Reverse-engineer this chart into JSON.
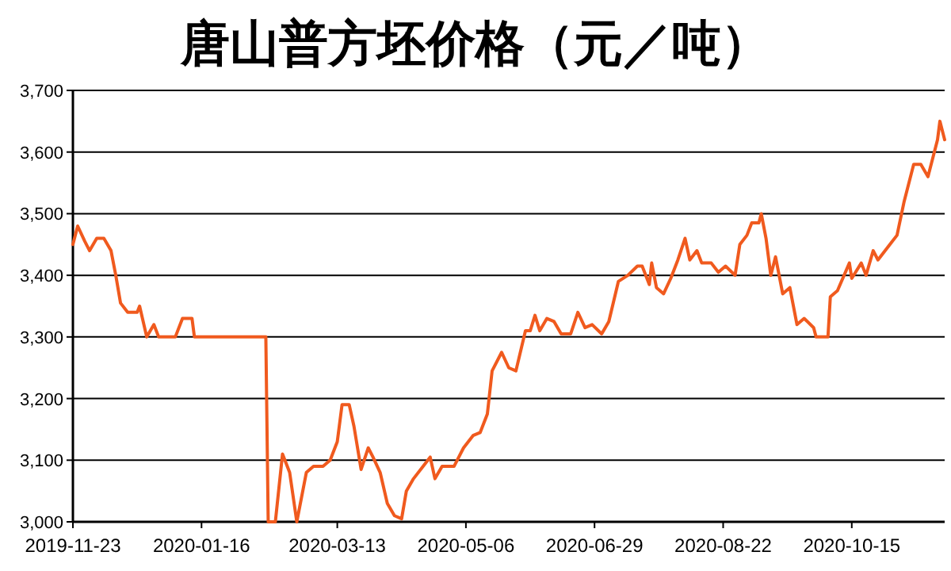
{
  "chart_data": {
    "type": "line",
    "title": "唐山普方坯价格（元／吨）",
    "x": [
      "2019-11-23",
      "2019-11-25",
      "2019-11-28",
      "2019-11-30",
      "2019-12-03",
      "2019-12-06",
      "2019-12-09",
      "2019-12-11",
      "2019-12-13",
      "2019-12-16",
      "2019-12-20",
      "2019-12-21",
      "2019-12-24",
      "2019-12-27",
      "2019-12-29",
      "2020-01-05",
      "2020-01-08",
      "2020-01-12",
      "2020-01-13",
      "2020-01-16",
      "2020-02-12",
      "2020-02-13",
      "2020-02-16",
      "2020-02-19",
      "2020-02-22",
      "2020-02-25",
      "2020-02-29",
      "2020-03-03",
      "2020-03-07",
      "2020-03-10",
      "2020-03-13",
      "2020-03-15",
      "2020-03-18",
      "2020-03-20",
      "2020-03-23",
      "2020-03-26",
      "2020-03-28",
      "2020-03-31",
      "2020-04-03",
      "2020-04-06",
      "2020-04-09",
      "2020-04-11",
      "2020-04-14",
      "2020-04-19",
      "2020-04-21",
      "2020-04-23",
      "2020-04-26",
      "2020-05-01",
      "2020-05-05",
      "2020-05-09",
      "2020-05-12",
      "2020-05-15",
      "2020-05-17",
      "2020-05-21",
      "2020-05-24",
      "2020-05-27",
      "2020-05-31",
      "2020-06-02",
      "2020-06-04",
      "2020-06-06",
      "2020-06-09",
      "2020-06-12",
      "2020-06-15",
      "2020-06-19",
      "2020-06-22",
      "2020-06-25",
      "2020-06-28",
      "2020-07-02",
      "2020-07-05",
      "2020-07-09",
      "2020-07-13",
      "2020-07-17",
      "2020-07-19",
      "2020-07-22",
      "2020-07-23",
      "2020-07-25",
      "2020-07-28",
      "2020-07-31",
      "2020-08-03",
      "2020-08-06",
      "2020-08-08",
      "2020-08-11",
      "2020-08-13",
      "2020-08-17",
      "2020-08-20",
      "2020-08-23",
      "2020-08-27",
      "2020-08-29",
      "2020-09-01",
      "2020-09-03",
      "2020-09-06",
      "2020-09-07",
      "2020-09-09",
      "2020-09-11",
      "2020-09-13",
      "2020-09-16",
      "2020-09-19",
      "2020-09-22",
      "2020-09-25",
      "2020-09-29",
      "2020-09-30",
      "2020-10-05",
      "2020-10-06",
      "2020-10-09",
      "2020-10-14",
      "2020-10-15",
      "2020-10-19",
      "2020-10-21",
      "2020-10-24",
      "2020-10-26",
      "2020-10-31",
      "2020-11-03",
      "2020-11-06",
      "2020-11-10",
      "2020-11-13",
      "2020-11-16",
      "2020-11-20",
      "2020-11-21",
      "2020-11-23"
    ],
    "series": [
      {
        "color": "#f05a1e",
        "values": [
          3450,
          3480,
          3455,
          3440,
          3460,
          3460,
          3440,
          3400,
          3355,
          3340,
          3340,
          3350,
          3300,
          3320,
          3300,
          3300,
          3330,
          3330,
          3300,
          3300,
          3300,
          3000,
          3000,
          3110,
          3080,
          3000,
          3080,
          3090,
          3090,
          3100,
          3130,
          3190,
          3190,
          3155,
          3085,
          3120,
          3105,
          3080,
          3030,
          3010,
          3005,
          3050,
          3070,
          3095,
          3105,
          3070,
          3090,
          3090,
          3120,
          3140,
          3145,
          3175,
          3245,
          3275,
          3250,
          3245,
          3310,
          3310,
          3335,
          3310,
          3330,
          3325,
          3305,
          3305,
          3340,
          3315,
          3320,
          3305,
          3325,
          3390,
          3400,
          3415,
          3415,
          3385,
          3420,
          3380,
          3370,
          3395,
          3425,
          3460,
          3425,
          3440,
          3420,
          3420,
          3405,
          3415,
          3400,
          3450,
          3465,
          3485,
          3485,
          3500,
          3460,
          3400,
          3430,
          3370,
          3380,
          3320,
          3330,
          3315,
          3300,
          3300,
          3365,
          3375,
          3420,
          3395,
          3420,
          3400,
          3440,
          3425,
          3450,
          3465,
          3520,
          3580,
          3580,
          3560,
          3620,
          3650,
          3620
        ]
      }
    ],
    "xlim": [
      "2019-11-23",
      "2020-11-23"
    ],
    "xticks": [
      "2019-11-23",
      "2020-01-16",
      "2020-03-13",
      "2020-05-06",
      "2020-06-29",
      "2020-08-22",
      "2020-10-15"
    ],
    "ylim": [
      3000,
      3700
    ],
    "yticks": [
      {
        "value": 3000,
        "label": "3,000"
      },
      {
        "value": 3100,
        "label": "3,100"
      },
      {
        "value": 3200,
        "label": "3,200"
      },
      {
        "value": 3300,
        "label": "3,300"
      },
      {
        "value": 3400,
        "label": "3,400"
      },
      {
        "value": 3500,
        "label": "3,500"
      },
      {
        "value": 3600,
        "label": "3,600"
      },
      {
        "value": 3700,
        "label": "3,700"
      }
    ],
    "grid": "y",
    "marker": "none",
    "line_style": "solid"
  }
}
